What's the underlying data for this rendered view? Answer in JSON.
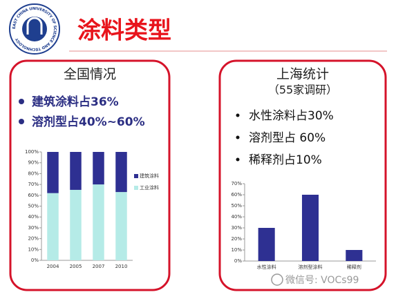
{
  "slide": {
    "title": "涂料类型",
    "logo_text": "EAST CHINA UNIVERSITY OF SCIENCE AND TECHNOLOGY",
    "watermark": "微信号: VOCs99",
    "left": {
      "heading": "全国情况",
      "bullets": [
        "建筑涂料占36%",
        "溶剂型占40%~60%"
      ]
    },
    "right": {
      "heading": "上海统计",
      "subheading": "（55家调研）",
      "bullets": [
        "水性涂料占30%",
        "溶剂型占 60%",
        "稀释剂占10%"
      ]
    }
  },
  "chart_data": [
    {
      "type": "stacked_bar",
      "categories": [
        "2004",
        "2005",
        "2007",
        "2010"
      ],
      "series": [
        {
          "name": "建筑涂料",
          "color": "#2e3092",
          "values": [
            38,
            35,
            30,
            37
          ]
        },
        {
          "name": "工业涂料",
          "color": "#b5ebe7",
          "values": [
            62,
            65,
            70,
            63
          ]
        }
      ],
      "ylim": [
        0,
        100
      ],
      "yticks": [
        {
          "value": 0,
          "label": "0%"
        },
        {
          "value": 10,
          "label": "10%"
        },
        {
          "value": 20,
          "label": "20%"
        },
        {
          "value": 30,
          "label": "30%"
        },
        {
          "value": 40,
          "label": "40%"
        },
        {
          "value": 50,
          "label": "50%"
        },
        {
          "value": 60,
          "label": "60%"
        },
        {
          "value": 70,
          "label": "70%"
        },
        {
          "value": 80,
          "label": "80%"
        },
        {
          "value": 90,
          "label": "90%"
        },
        {
          "value": 100,
          "label": "100%"
        }
      ],
      "legend": "right"
    },
    {
      "type": "bar",
      "categories": [
        "水性涂料",
        "溶剂型涂料",
        "稀释剂"
      ],
      "values": [
        30,
        60,
        10
      ],
      "color": "#2e3092",
      "ylim": [
        0,
        70
      ],
      "yticks": [
        {
          "value": 0,
          "label": "0%"
        },
        {
          "value": 10,
          "label": "10%"
        },
        {
          "value": 20,
          "label": "20%"
        },
        {
          "value": 30,
          "label": "30%"
        },
        {
          "value": 40,
          "label": "40%"
        },
        {
          "value": 50,
          "label": "50%"
        },
        {
          "value": 60,
          "label": "60%"
        },
        {
          "value": 70,
          "label": "70%"
        }
      ]
    }
  ]
}
